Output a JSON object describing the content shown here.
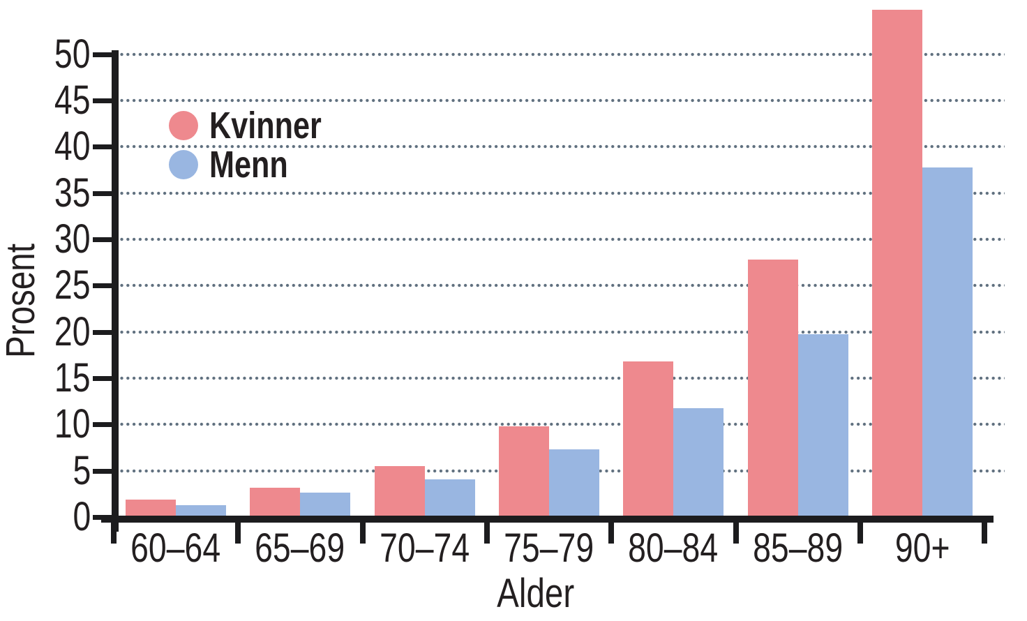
{
  "chart_data": {
    "type": "bar",
    "title": "",
    "categories": [
      "60–64",
      "65–69",
      "70–74",
      "75–79",
      "80–84",
      "85–89",
      "90+"
    ],
    "series": [
      {
        "name": "Kvinner",
        "color": "#ee898e",
        "values": [
          2.1,
          3.4,
          5.7,
          10,
          17,
          28,
          55
        ]
      },
      {
        "name": "Menn",
        "color": "#99b6e1",
        "values": [
          1.5,
          2.9,
          4.3,
          7.5,
          12,
          20,
          38
        ]
      }
    ],
    "xlabel": "Alder",
    "ylabel": "Prosent",
    "ylim": [
      0,
      50
    ],
    "yticks": [
      0,
      5,
      10,
      15,
      20,
      25,
      30,
      35,
      40,
      45,
      50
    ],
    "grid": {
      "axis": "y",
      "style": "dotted",
      "interval": 5
    },
    "legend_position": "inside-top-left",
    "overflow_note": "Kvinner 90+ bar extends above the 50 axis maximum"
  },
  "colors": {
    "axis": "#1c1c1e",
    "text": "#231f20",
    "gridline_dots": "#60707f",
    "kvinner": "#ee898e",
    "menn": "#99b6e1",
    "background": "#ffffff"
  }
}
